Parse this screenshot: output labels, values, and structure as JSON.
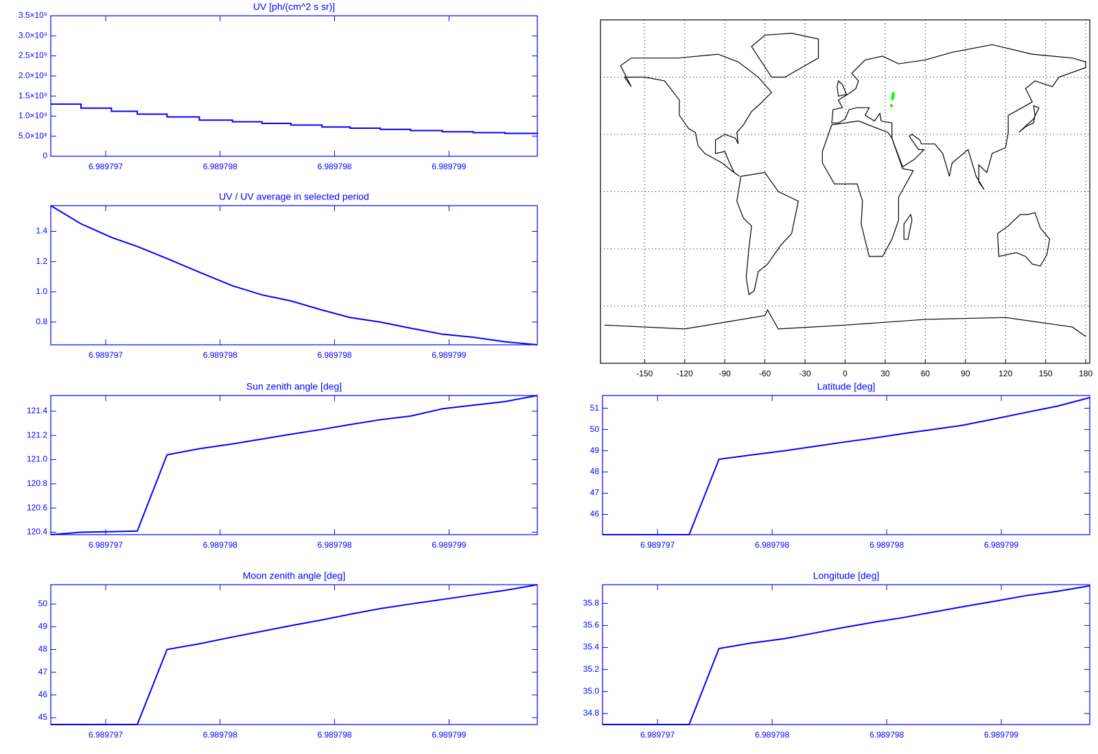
{
  "chart_data": [
    {
      "type": "line",
      "step": true,
      "title": "UV [ph/(cm^2 s sr)]",
      "color": "#0000ff",
      "x": [
        6.98979676,
        6.989796892,
        6.989797025,
        6.989797138,
        6.989797268,
        6.989797409,
        6.989797554,
        6.989797683,
        6.989797809,
        6.989797945,
        6.989798068,
        6.9897982,
        6.989798332,
        6.989798471,
        6.989798606,
        6.989798745,
        6.989798886
      ],
      "values": [
        1300000000,
        1200000000,
        1120000000,
        1050000000,
        980000000,
        900000000,
        860000000,
        820000000,
        780000000,
        730000000,
        700000000,
        670000000,
        640000000,
        610000000,
        590000000,
        570000000,
        560000000
      ],
      "xlim": [
        6.98979676,
        6.989798886
      ],
      "xticks": [
        6.989797,
        {
          "value": 6.9897975,
          "label": "6.989798"
        },
        {
          "value": 6.989798,
          "label": "6.989798"
        },
        {
          "value": 6.9897985,
          "label": "6.989799"
        }
      ],
      "ylim": [
        0,
        3500000000
      ],
      "yticks": [
        0,
        {
          "value": 500000000,
          "label": "5.0×10⁸"
        },
        {
          "value": 1000000000,
          "label": "1.0×10⁹"
        },
        {
          "value": 1500000000,
          "label": "1.5×10⁹"
        },
        {
          "value": 2000000000,
          "label": "2.0×10⁹"
        },
        {
          "value": 2500000000,
          "label": "2.5×10⁹"
        },
        {
          "value": 3000000000,
          "label": "3.0×10⁹"
        },
        {
          "value": 3500000000,
          "label": "3.5×10⁹"
        }
      ]
    },
    {
      "type": "map",
      "color": "#000000",
      "grid": true,
      "xlim": [
        -183,
        183
      ],
      "ylim": [
        -90,
        90
      ],
      "xticks": [
        -150,
        -120,
        -90,
        -60,
        -30,
        0,
        30,
        60,
        90,
        120,
        150,
        180
      ]
    },
    {
      "type": "line",
      "title": "UV / UV average in selected period",
      "color": "#0000ff",
      "x": [
        6.98979676,
        6.989796892,
        6.989797025,
        6.989797138,
        6.989797268,
        6.989797409,
        6.989797554,
        6.989797683,
        6.989797809,
        6.989797945,
        6.989798068,
        6.9897982,
        6.989798332,
        6.989798471,
        6.989798606,
        6.989798745,
        6.989798886
      ],
      "values": [
        1.57,
        1.45,
        1.36,
        1.3,
        1.22,
        1.13,
        1.04,
        0.98,
        0.94,
        0.88,
        0.83,
        0.8,
        0.76,
        0.72,
        0.7,
        0.67,
        0.65
      ],
      "xlim": [
        6.98979676,
        6.989798886
      ],
      "xticks": [
        6.989797,
        {
          "value": 6.9897975,
          "label": "6.989798"
        },
        {
          "value": 6.989798,
          "label": "6.989798"
        },
        {
          "value": 6.9897985,
          "label": "6.989799"
        }
      ],
      "ylim": [
        0.65,
        1.57
      ],
      "yticks": [
        0.8,
        {
          "value": 1,
          "label": "1.0"
        },
        1.2,
        1.4
      ]
    },
    {
      "type": "line",
      "title": "Sun zenith angle [deg]",
      "color": "#0000ff",
      "x": [
        6.98979676,
        6.989796892,
        6.989797025,
        6.989797138,
        6.989797268,
        6.989797409,
        6.989797554,
        6.989797683,
        6.989797809,
        6.989797945,
        6.989798068,
        6.9897982,
        6.989798332,
        6.989798471,
        6.989798606,
        6.989798745,
        6.989798886
      ],
      "values": [
        120.38,
        120.4,
        120.405,
        120.41,
        121.04,
        121.09,
        121.13,
        121.17,
        121.21,
        121.25,
        121.29,
        121.33,
        121.36,
        121.42,
        121.45,
        121.48,
        121.53
      ],
      "xlim": [
        6.98979676,
        6.989798886
      ],
      "xticks": [
        6.989797,
        {
          "value": 6.9897975,
          "label": "6.989798"
        },
        {
          "value": 6.989798,
          "label": "6.989798"
        },
        {
          "value": 6.9897985,
          "label": "6.989799"
        }
      ],
      "ylim": [
        120.38,
        121.53
      ],
      "yticks": [
        120.4,
        120.6,
        120.8,
        {
          "value": 121,
          "label": "121.0"
        },
        121.2,
        121.4
      ]
    },
    {
      "type": "line",
      "title": "Latitude [deg]",
      "color": "#0000ff",
      "x": [
        6.98979676,
        6.989796892,
        6.989797025,
        6.989797138,
        6.989797268,
        6.989797409,
        6.989797554,
        6.989797683,
        6.989797809,
        6.989797945,
        6.989798068,
        6.9897982,
        6.989798332,
        6.989798471,
        6.989798606,
        6.989798745,
        6.989798886
      ],
      "values": [
        45.05,
        45.05,
        45.05,
        45.05,
        48.6,
        48.8,
        49.0,
        49.2,
        49.4,
        49.6,
        49.8,
        50.0,
        50.2,
        50.5,
        50.8,
        51.1,
        51.5
      ],
      "xlim": [
        6.98979676,
        6.989798886
      ],
      "xticks": [
        6.989797,
        {
          "value": 6.9897975,
          "label": "6.989798"
        },
        {
          "value": 6.989798,
          "label": "6.989798"
        },
        {
          "value": 6.9897985,
          "label": "6.989799"
        }
      ],
      "ylim": [
        45.05,
        51.6
      ],
      "yticks": [
        46,
        47,
        48,
        49,
        50,
        51
      ]
    },
    {
      "type": "line",
      "title": "Moon zenith angle [deg]",
      "color": "#0000ff",
      "x": [
        6.98979676,
        6.989796892,
        6.989797025,
        6.989797138,
        6.989797268,
        6.989797409,
        6.989797554,
        6.989797683,
        6.989797809,
        6.989797945,
        6.989798068,
        6.9897982,
        6.989798332,
        6.989798471,
        6.989798606,
        6.989798745,
        6.989798886
      ],
      "values": [
        44.7,
        44.7,
        44.7,
        44.7,
        48.0,
        48.25,
        48.55,
        48.8,
        49.05,
        49.3,
        49.55,
        49.8,
        50.0,
        50.2,
        50.4,
        50.6,
        50.85
      ],
      "xlim": [
        6.98979676,
        6.989798886
      ],
      "xticks": [
        6.989797,
        {
          "value": 6.9897975,
          "label": "6.989798"
        },
        {
          "value": 6.989798,
          "label": "6.989798"
        },
        {
          "value": 6.9897985,
          "label": "6.989799"
        }
      ],
      "ylim": [
        44.7,
        50.85
      ],
      "yticks": [
        45,
        46,
        47,
        48,
        49,
        50
      ]
    },
    {
      "type": "line",
      "title": "Longitude [deg]",
      "color": "#0000ff",
      "x": [
        6.98979676,
        6.989796892,
        6.989797025,
        6.989797138,
        6.989797268,
        6.989797409,
        6.989797554,
        6.989797683,
        6.989797809,
        6.989797945,
        6.989798068,
        6.9897982,
        6.989798332,
        6.989798471,
        6.989798606,
        6.989798745,
        6.989798886
      ],
      "values": [
        34.7,
        34.7,
        34.7,
        34.7,
        35.39,
        35.44,
        35.48,
        35.53,
        35.58,
        35.63,
        35.67,
        35.72,
        35.77,
        35.82,
        35.87,
        35.91,
        35.96
      ],
      "xlim": [
        6.98979676,
        6.989798886
      ],
      "xticks": [
        6.989797,
        {
          "value": 6.9897975,
          "label": "6.989798"
        },
        {
          "value": 6.989798,
          "label": "6.989798"
        },
        {
          "value": 6.9897985,
          "label": "6.989799"
        }
      ],
      "ylim": [
        34.7,
        35.97
      ],
      "yticks": [
        34.8,
        {
          "value": 35,
          "label": "35.0"
        },
        35.2,
        35.4,
        35.6,
        35.8
      ]
    }
  ]
}
